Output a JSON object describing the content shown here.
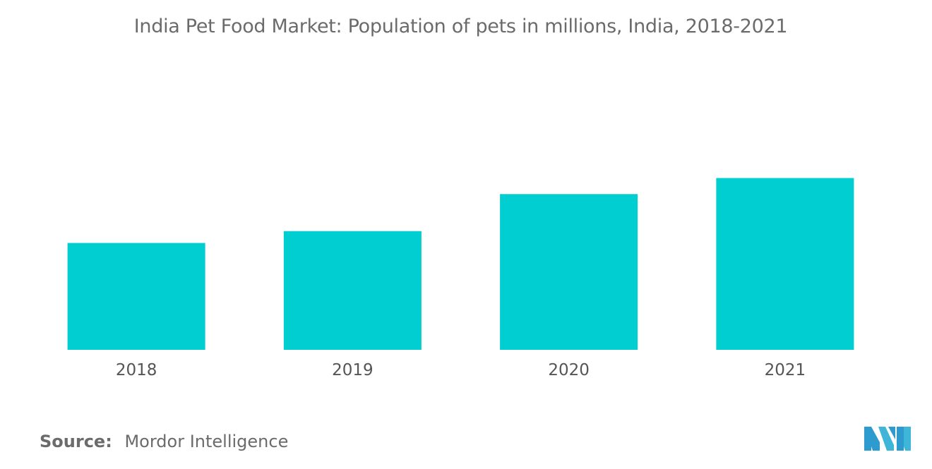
{
  "chart_data": {
    "type": "bar",
    "title": "India Pet Food Market: Population of pets in millions, India, 2018-2021",
    "categories": [
      "2018",
      "2019",
      "2020",
      "2021"
    ],
    "values": [
      15.3,
      17,
      22.3,
      24.6
    ],
    "xlabel": "",
    "ylabel": "",
    "ylim": [
      0,
      40
    ],
    "grid": false,
    "bar_color": "#00CED1"
  },
  "source": {
    "label": "Source:",
    "value": "Mordor Intelligence"
  },
  "logo": {
    "icon": "mordor-intelligence-logo-icon",
    "color": "#2E9BCF"
  }
}
